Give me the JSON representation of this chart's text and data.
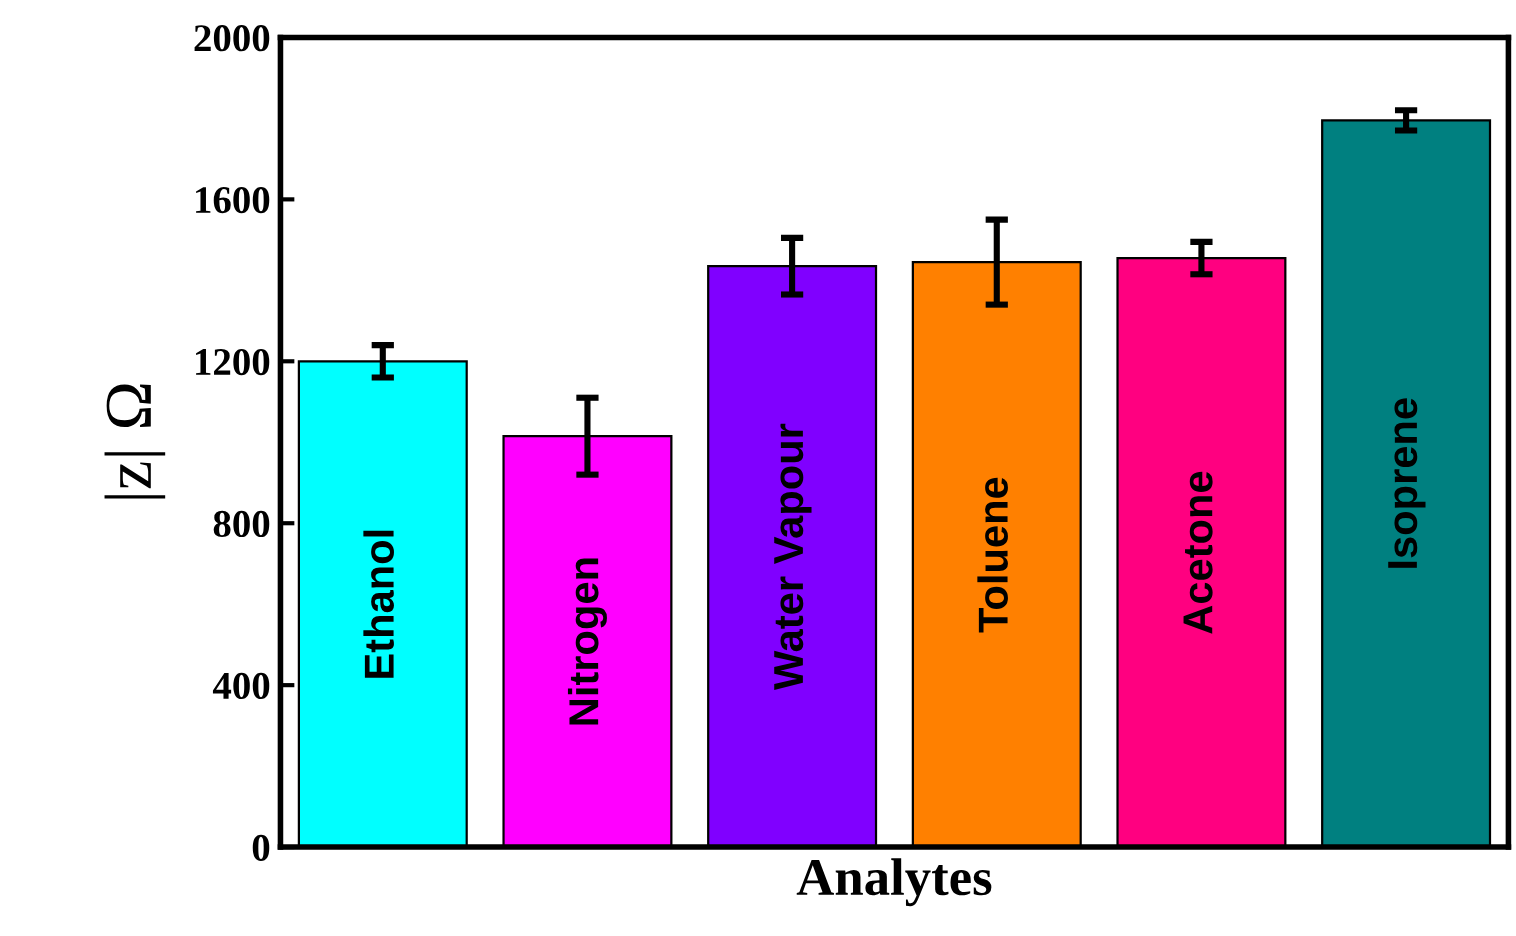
{
  "chart_data": {
    "type": "bar",
    "categories": [
      "Ethanol",
      "Nitrogen",
      "Water Vapour",
      "Toluene",
      "Acetone",
      "Isoprene"
    ],
    "values": [
      1200,
      1015,
      1435,
      1445,
      1455,
      1795
    ],
    "errors": [
      40,
      95,
      70,
      105,
      40,
      25
    ],
    "colors": [
      "#00ffff",
      "#ff00ff",
      "#8000ff",
      "#ff8000",
      "#ff0080",
      "#008080"
    ],
    "xlabel": "Analytes",
    "ylabel": "|z| Ω",
    "ylim": [
      0,
      2000
    ],
    "yticks": [
      0,
      400,
      800,
      1200,
      1600,
      2000
    ],
    "tick_labels": "y",
    "grid": false,
    "legend": false
  }
}
